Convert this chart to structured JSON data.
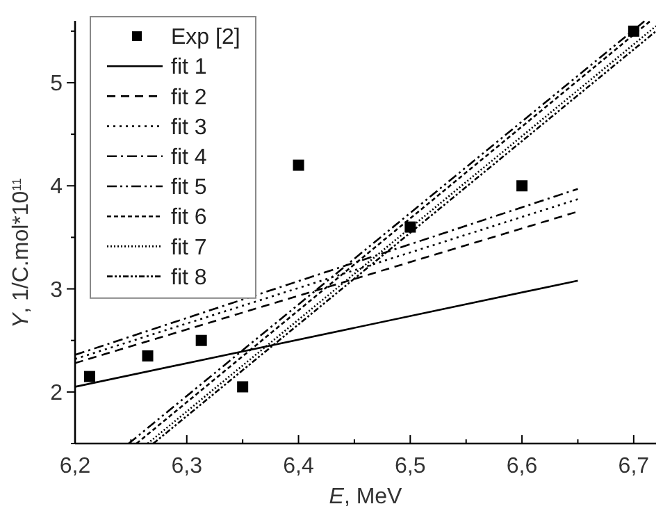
{
  "chart_data": {
    "type": "line",
    "xlabel": "E, MeV",
    "ylabel": "Y, 1/C.mol*10$^{11}$",
    "xlim": [
      6.2,
      6.72
    ],
    "ylim": [
      1.5,
      5.6
    ],
    "xticks": [
      {
        "value": 6.2,
        "label": "6,2"
      },
      {
        "value": 6.25,
        "label": null
      },
      {
        "value": 6.3,
        "label": "6,3"
      },
      {
        "value": 6.35,
        "label": null
      },
      {
        "value": 6.4,
        "label": "6,4"
      },
      {
        "value": 6.45,
        "label": null
      },
      {
        "value": 6.5,
        "label": "6,5"
      },
      {
        "value": 6.55,
        "label": null
      },
      {
        "value": 6.6,
        "label": "6,6"
      },
      {
        "value": 6.65,
        "label": null
      },
      {
        "value": 6.7,
        "label": "6,7"
      }
    ],
    "yticks": [
      {
        "value": 1.5,
        "label": null
      },
      2,
      {
        "value": 2.5,
        "label": null
      },
      3,
      {
        "value": 3.5,
        "label": null
      },
      4,
      {
        "value": 4.5,
        "label": null
      },
      5,
      {
        "value": 5.5,
        "label": null
      }
    ],
    "legend": "top left",
    "grid": false,
    "series": [
      {
        "name": "Exp [2]",
        "type": "scatter",
        "marker": "square",
        "color": "#000000",
        "x": [
          6.213,
          6.265,
          6.313,
          6.35,
          6.4,
          6.5,
          6.6,
          6.7
        ],
        "values": [
          2.15,
          2.35,
          2.5,
          2.05,
          4.2,
          3.6,
          4.0,
          5.5
        ]
      },
      {
        "name": "fit 1",
        "type": "line",
        "line_style": "solid",
        "color": "#000000",
        "x": [
          6.2,
          6.65
        ],
        "values": [
          2.05,
          3.08
        ]
      },
      {
        "name": "fit 2",
        "type": "line",
        "line_style": "dashed",
        "color": "#000000",
        "x": [
          6.2,
          6.65
        ],
        "values": [
          2.28,
          3.75
        ]
      },
      {
        "name": "fit 3",
        "type": "line",
        "line_style": "dotted",
        "color": "#000000",
        "x": [
          6.2,
          6.65
        ],
        "values": [
          2.32,
          3.87
        ]
      },
      {
        "name": "fit 4",
        "type": "line",
        "line_style": "dashdot",
        "color": "#000000",
        "x": [
          6.2,
          6.65
        ],
        "values": [
          2.36,
          3.97
        ]
      },
      {
        "name": "fit 5",
        "type": "line",
        "line_style": "dashdotdot",
        "color": "#000000",
        "x": [
          6.248,
          6.71
        ],
        "values": [
          1.5,
          5.6
        ]
      },
      {
        "name": "fit 6",
        "type": "line",
        "line_style": "shortdash",
        "color": "#000000",
        "x": [
          6.255,
          6.715
        ],
        "values": [
          1.5,
          5.6
        ]
      },
      {
        "name": "fit 7",
        "type": "line",
        "line_style": "finedotted",
        "color": "#000000",
        "x": [
          6.265,
          6.72
        ],
        "values": [
          1.5,
          5.55
        ]
      },
      {
        "name": "fit 8",
        "type": "line",
        "line_style": "densedashdotdot",
        "color": "#000000",
        "x": [
          6.27,
          6.72
        ],
        "values": [
          1.5,
          5.5
        ]
      }
    ]
  }
}
